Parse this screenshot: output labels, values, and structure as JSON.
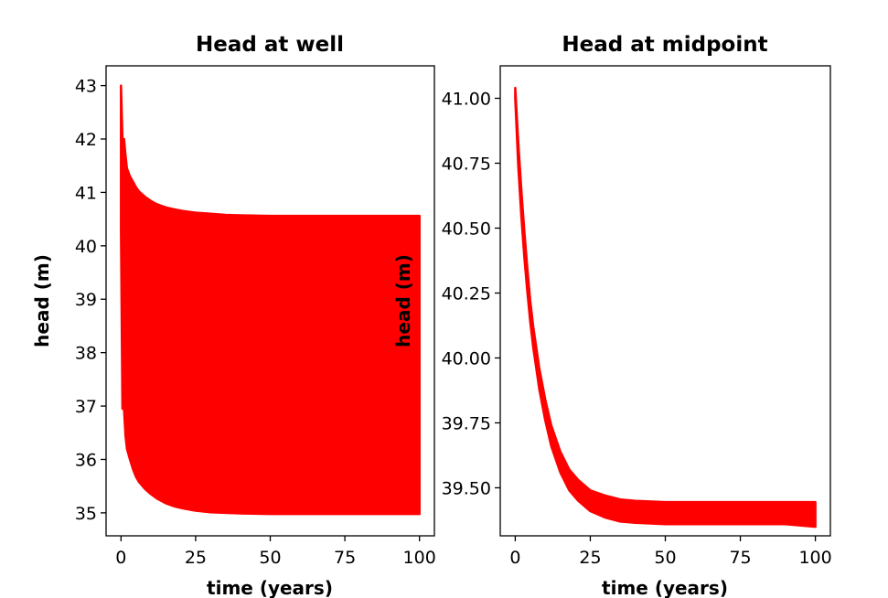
{
  "chart_data": [
    {
      "type": "line",
      "title": "Head at well",
      "xlabel": "time (years)",
      "ylabel": "head (m)",
      "xlim": [
        -5,
        105
      ],
      "ylim": [
        34.57,
        43.37
      ],
      "xticks": [
        "0",
        "25",
        "50",
        "75",
        "100"
      ],
      "yticks": [
        "35",
        "36",
        "37",
        "38",
        "39",
        "40",
        "41",
        "42",
        "43"
      ],
      "series": [
        {
          "color": "#ff0000",
          "envelope": {
            "x": [
              0,
              0.5,
              1,
              1.5,
              2,
              3,
              4,
              5,
              6,
              8,
              10,
              12,
              15,
              18,
              21,
              25,
              30,
              35,
              40,
              50,
              60,
              70,
              80,
              90,
              100
            ],
            "upper": [
              43.0,
              42.0,
              42.0,
              41.7,
              41.45,
              41.3,
              41.2,
              41.1,
              41.02,
              40.92,
              40.84,
              40.78,
              40.72,
              40.68,
              40.65,
              40.62,
              40.6,
              40.58,
              40.57,
              40.56,
              40.56,
              40.56,
              40.56,
              40.56,
              40.56
            ],
            "lower": [
              40.3,
              36.95,
              36.95,
              36.45,
              36.2,
              36.0,
              35.82,
              35.68,
              35.58,
              35.45,
              35.35,
              35.27,
              35.18,
              35.12,
              35.08,
              35.04,
              35.01,
              35.0,
              34.99,
              34.98,
              34.98,
              34.98,
              34.98,
              34.98,
              34.98
            ]
          }
        }
      ]
    },
    {
      "type": "line",
      "title": "Head at midpoint",
      "xlabel": "time (years)",
      "ylabel": "head (m)",
      "xlim": [
        -5,
        105
      ],
      "ylim": [
        39.315,
        41.125
      ],
      "xticks": [
        "0",
        "25",
        "50",
        "75",
        "100"
      ],
      "yticks": [
        "39.50",
        "39.75",
        "40.00",
        "40.25",
        "40.50",
        "40.75",
        "41.00"
      ],
      "series": [
        {
          "color": "#ff0000",
          "envelope": {
            "x": [
              0,
              1,
              2,
              3,
              4,
              5,
              6,
              8,
              10,
              12,
              15,
              18,
              21,
              25,
              30,
              35,
              40,
              50,
              60,
              70,
              80,
              90,
              100
            ],
            "upper": [
              41.04,
              40.83,
              40.65,
              40.49,
              40.35,
              40.22,
              40.12,
              39.96,
              39.84,
              39.74,
              39.64,
              39.57,
              39.53,
              39.49,
              39.47,
              39.455,
              39.45,
              39.445,
              39.445,
              39.445,
              39.445,
              39.445,
              39.445
            ],
            "lower": [
              41.0,
              40.74,
              40.55,
              40.39,
              40.26,
              40.14,
              40.04,
              39.88,
              39.76,
              39.66,
              39.56,
              39.49,
              39.45,
              39.41,
              39.385,
              39.37,
              39.365,
              39.36,
              39.36,
              39.36,
              39.36,
              39.36,
              39.35
            ]
          }
        }
      ]
    }
  ]
}
